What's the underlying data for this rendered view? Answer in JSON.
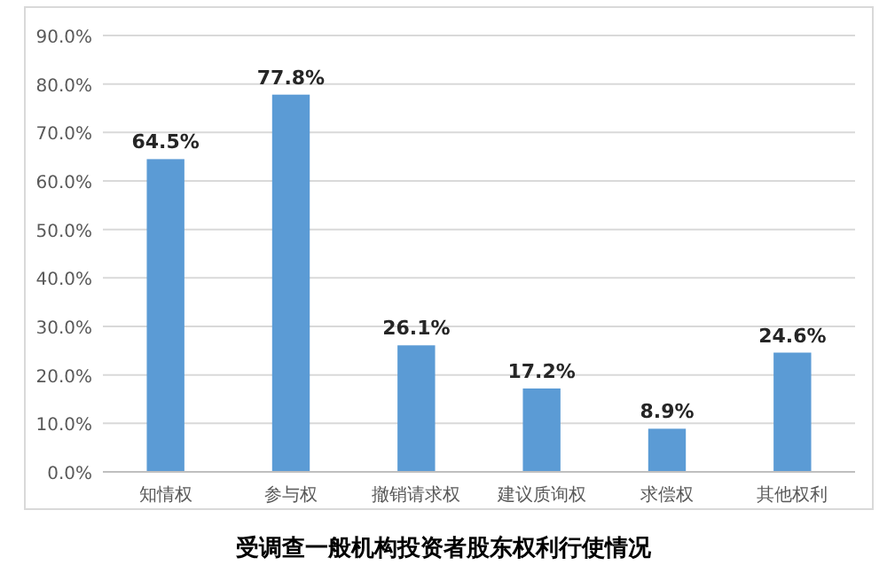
{
  "chart_data": {
    "type": "bar",
    "title": "受调查一般机构投资者股东权利行使情况",
    "categories": [
      "知情权",
      "参与权",
      "撤销请求权",
      "建议质询权",
      "求偿权",
      "其他权利"
    ],
    "values": [
      64.5,
      77.8,
      26.1,
      17.2,
      8.9,
      24.6
    ],
    "value_labels": [
      "64.5%",
      "77.8%",
      "26.1%",
      "17.2%",
      "8.9%",
      "24.6%"
    ],
    "color": "#5b9bd5",
    "ylim": [
      0,
      90
    ],
    "yticks": [
      {
        "value": 0,
        "label": "0.0%"
      },
      {
        "value": 10,
        "label": "10.0%"
      },
      {
        "value": 20,
        "label": "20.0%"
      },
      {
        "value": 30,
        "label": "30.0%"
      },
      {
        "value": 40,
        "label": "40.0%"
      },
      {
        "value": 50,
        "label": "50.0%"
      },
      {
        "value": 60,
        "label": "60.0%"
      },
      {
        "value": 70,
        "label": "70.0%"
      },
      {
        "value": 80,
        "label": "80.0%"
      },
      {
        "value": 90,
        "label": "90.0%"
      }
    ],
    "grid": "y"
  }
}
